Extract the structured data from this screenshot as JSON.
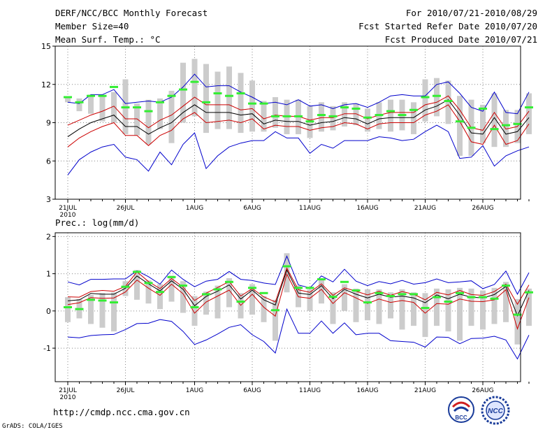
{
  "header": {
    "title": "DERF/NCC/BCC Monthly Forecast",
    "member_size": "Member Size=40",
    "variable_top": "Mean Surf. Temp.: °C",
    "forecast_period": "For 2010/07/21-2010/08/29",
    "fcst_started": "Fcst Started Refer Date 2010/07/20",
    "fcst_produced": "Fcst Produced Date 2010/07/21"
  },
  "footer": {
    "url": "http://cmdp.ncc.cma.gov.cn",
    "grads": "GrADS: COLA/IGES",
    "logo_bcc": "BCC",
    "logo_ncc": "NCC"
  },
  "colors": {
    "max_min": "#0000cc",
    "spread": "#cc0000",
    "mean": "#000000",
    "observed_marker": "#33ee33",
    "box": "#cccccc",
    "grid": "#888888"
  },
  "chart_data": [
    {
      "type": "line",
      "title": "Mean Surf. Temp.: °C",
      "xlabel": "",
      "ylabel": "°C",
      "ylim": [
        3,
        15
      ],
      "yticks": [
        3,
        6,
        9,
        12,
        15
      ],
      "x_tick_labels": [
        "21JUL",
        "26JUL",
        "1AUG",
        "6AUG",
        "11AUG",
        "16AUG",
        "21AUG",
        "26AUG"
      ],
      "x_tick_index": [
        0,
        5,
        11,
        16,
        21,
        26,
        31,
        36
      ],
      "year_label": "2010",
      "series": [
        {
          "name": "max",
          "color": "#0000cc",
          "values": [
            10.6,
            10.5,
            11.2,
            11.2,
            11.6,
            10.5,
            10.6,
            10.7,
            10.6,
            11.0,
            11.8,
            12.8,
            11.8,
            11.9,
            11.9,
            11.4,
            11.0,
            10.5,
            10.6,
            10.4,
            10.8,
            10.3,
            10.4,
            10.1,
            10.4,
            10.5,
            10.2,
            10.6,
            11.1,
            11.2,
            11.1,
            11.1,
            12.0,
            12.2,
            11.3,
            10.2,
            9.9,
            11.4,
            9.8,
            9.7,
            11.4
          ]
        },
        {
          "name": "spread_high",
          "color": "#cc0000",
          "values": [
            8.8,
            9.2,
            9.6,
            9.9,
            10.3,
            9.3,
            9.3,
            8.6,
            9.2,
            9.6,
            10.3,
            11.0,
            10.4,
            10.4,
            10.4,
            10.0,
            10.1,
            9.3,
            9.6,
            9.5,
            9.5,
            9.2,
            9.4,
            9.4,
            9.7,
            9.7,
            9.3,
            9.6,
            9.8,
            9.8,
            9.8,
            10.4,
            10.6,
            11.1,
            10.0,
            8.6,
            8.4,
            9.8,
            8.5,
            8.7,
            9.9
          ]
        },
        {
          "name": "mean",
          "color": "#000000",
          "values": [
            7.9,
            8.5,
            9.0,
            9.3,
            9.6,
            8.7,
            8.7,
            8.1,
            8.6,
            9.0,
            9.8,
            10.4,
            9.8,
            9.8,
            9.8,
            9.6,
            9.7,
            8.9,
            9.2,
            9.1,
            9.1,
            8.8,
            9.0,
            9.1,
            9.4,
            9.3,
            8.9,
            9.3,
            9.4,
            9.4,
            9.4,
            10.0,
            10.3,
            10.8,
            9.6,
            8.2,
            8.1,
            9.4,
            8.1,
            8.3,
            9.4
          ]
        },
        {
          "name": "spread_low",
          "color": "#cc0000",
          "values": [
            7.1,
            7.8,
            8.3,
            8.7,
            9.0,
            8.0,
            8.0,
            7.2,
            8.0,
            8.4,
            9.3,
            9.8,
            9.0,
            9.1,
            9.2,
            9.0,
            9.3,
            8.5,
            8.8,
            8.7,
            8.7,
            8.4,
            8.6,
            8.7,
            9.0,
            8.9,
            8.5,
            8.9,
            9.0,
            9.0,
            9.0,
            9.6,
            9.9,
            10.4,
            9.1,
            7.5,
            7.3,
            8.8,
            7.3,
            7.6,
            8.9
          ]
        },
        {
          "name": "min",
          "color": "#0000cc",
          "values": [
            4.9,
            6.1,
            6.7,
            7.1,
            7.3,
            6.3,
            6.1,
            5.2,
            6.7,
            5.7,
            7.3,
            8.2,
            5.4,
            6.4,
            7.1,
            7.4,
            7.6,
            7.6,
            8.3,
            7.8,
            7.8,
            6.6,
            7.3,
            7.0,
            7.6,
            7.6,
            7.6,
            7.9,
            7.8,
            7.6,
            7.7,
            8.3,
            8.8,
            8.3,
            6.2,
            6.3,
            7.2,
            5.6,
            6.4,
            6.8,
            7.1
          ]
        }
      ],
      "box_high": [
        11.0,
        10.9,
        11.2,
        11.2,
        11.4,
        12.4,
        10.5,
        10.8,
        10.9,
        11.5,
        13.7,
        14.0,
        13.6,
        13.0,
        13.4,
        12.9,
        12.3,
        10.7,
        11.0,
        10.8,
        10.8,
        10.3,
        10.6,
        10.3,
        10.6,
        10.5,
        10.1,
        10.6,
        10.8,
        10.8,
        10.6,
        12.4,
        12.5,
        12.3,
        11.1,
        10.8,
        10.4,
        11.3,
        10.0,
        10.0,
        11.3
      ],
      "box_low": [
        10.6,
        9.9,
        9.7,
        9.1,
        9.0,
        8.1,
        8.0,
        7.3,
        8.5,
        7.4,
        9.0,
        9.5,
        8.2,
        8.5,
        8.5,
        8.2,
        8.3,
        8.3,
        8.6,
        8.1,
        8.1,
        7.8,
        8.3,
        8.4,
        8.7,
        8.8,
        8.3,
        8.5,
        8.3,
        8.4,
        8.1,
        9.1,
        9.5,
        8.9,
        6.4,
        6.4,
        7.4,
        7.1,
        7.1,
        7.4,
        8.1
      ],
      "observed": [
        11.0,
        10.6,
        11.1,
        11.1,
        11.8,
        10.2,
        10.2,
        9.9,
        10.6,
        11.1,
        11.6,
        12.2,
        10.6,
        11.3,
        11.1,
        11.3,
        10.5,
        10.5,
        9.5,
        9.5,
        9.5,
        9.1,
        9.6,
        9.5,
        10.2,
        10.1,
        9.4,
        9.6,
        9.9,
        9.6,
        10.0,
        11.0,
        11.1,
        10.7,
        9.1,
        8.6,
        10.1,
        8.5,
        8.8,
        8.9,
        10.2
      ]
    },
    {
      "type": "line",
      "title": "Prec.: log(mm/d)",
      "xlabel": "",
      "ylabel": "log(mm/d)",
      "ylim": [
        -1.9,
        2.1
      ],
      "yticks": [
        -1,
        0,
        1,
        2
      ],
      "x_tick_labels": [
        "21JUL",
        "26JUL",
        "1AUG",
        "6AUG",
        "11AUG",
        "16AUG",
        "21AUG",
        "26AUG"
      ],
      "x_tick_index": [
        0,
        5,
        11,
        16,
        21,
        26,
        31,
        36
      ],
      "year_label": "2010",
      "series": [
        {
          "name": "max",
          "color": "#0000cc",
          "values": [
            0.78,
            0.7,
            0.85,
            0.85,
            0.86,
            0.86,
            1.08,
            0.92,
            0.72,
            1.1,
            0.85,
            0.65,
            0.8,
            0.85,
            1.06,
            0.85,
            0.82,
            0.75,
            0.71,
            1.47,
            0.7,
            0.62,
            0.94,
            0.78,
            1.12,
            0.8,
            0.68,
            0.79,
            0.73,
            0.82,
            0.72,
            0.76,
            0.86,
            0.76,
            0.78,
            0.81,
            0.6,
            0.71,
            1.07,
            0.45,
            1.03
          ]
        },
        {
          "name": "spread_high",
          "color": "#cc0000",
          "values": [
            0.38,
            0.37,
            0.52,
            0.55,
            0.53,
            0.66,
            1.05,
            0.79,
            0.6,
            0.87,
            0.64,
            0.28,
            0.48,
            0.63,
            0.79,
            0.4,
            0.6,
            0.38,
            0.24,
            1.15,
            0.57,
            0.5,
            0.73,
            0.42,
            0.62,
            0.53,
            0.43,
            0.53,
            0.42,
            0.52,
            0.45,
            0.3,
            0.5,
            0.43,
            0.55,
            0.44,
            0.42,
            0.52,
            0.72,
            0.18,
            0.7
          ]
        },
        {
          "name": "mean",
          "color": "#000000",
          "values": [
            0.27,
            0.3,
            0.47,
            0.45,
            0.45,
            0.61,
            0.94,
            0.73,
            0.54,
            0.81,
            0.58,
            0.14,
            0.39,
            0.53,
            0.7,
            0.32,
            0.56,
            0.3,
            0.16,
            1.1,
            0.48,
            0.44,
            0.68,
            0.33,
            0.58,
            0.45,
            0.35,
            0.45,
            0.37,
            0.4,
            0.35,
            0.22,
            0.43,
            0.33,
            0.45,
            0.37,
            0.35,
            0.44,
            0.66,
            -0.13,
            0.55
          ]
        },
        {
          "name": "spread_low",
          "color": "#cc0000",
          "values": [
            0.17,
            0.22,
            0.36,
            0.34,
            0.35,
            0.51,
            0.83,
            0.61,
            0.42,
            0.72,
            0.46,
            -0.06,
            0.24,
            0.4,
            0.56,
            0.15,
            0.45,
            0.1,
            -0.14,
            0.99,
            0.38,
            0.34,
            0.58,
            0.2,
            0.49,
            0.35,
            0.2,
            0.32,
            0.23,
            0.28,
            0.23,
            -0.06,
            0.2,
            0.18,
            0.32,
            0.26,
            0.25,
            0.3,
            0.57,
            -0.48,
            0.36
          ]
        },
        {
          "name": "min",
          "color": "#0000cc",
          "values": [
            -0.7,
            -0.72,
            -0.66,
            -0.64,
            -0.63,
            -0.5,
            -0.34,
            -0.33,
            -0.23,
            -0.28,
            -0.55,
            -0.9,
            -0.78,
            -0.62,
            -0.44,
            -0.37,
            -0.64,
            -0.82,
            -1.13,
            0.05,
            -0.6,
            -0.6,
            -0.27,
            -0.6,
            -0.32,
            -0.64,
            -0.6,
            -0.6,
            -0.8,
            -0.82,
            -0.84,
            -0.97,
            -0.7,
            -0.71,
            -0.88,
            -0.74,
            -0.73,
            -0.68,
            -0.78,
            -1.29,
            -0.65
          ]
        }
      ],
      "box_high": [
        0.37,
        0.32,
        0.43,
        0.48,
        0.5,
        0.8,
        1.1,
        0.82,
        0.72,
        0.95,
        0.8,
        0.4,
        0.52,
        0.68,
        0.88,
        0.48,
        0.72,
        0.4,
        0.3,
        1.55,
        0.68,
        0.58,
        0.84,
        0.5,
        0.72,
        0.6,
        0.58,
        0.58,
        0.5,
        0.58,
        0.5,
        0.48,
        0.6,
        0.58,
        0.62,
        0.6,
        0.55,
        0.62,
        0.78,
        0.32,
        0.6
      ],
      "box_low": [
        -0.3,
        -0.2,
        -0.35,
        -0.45,
        -0.55,
        0.4,
        0.3,
        0.2,
        0.05,
        0.25,
        -0.05,
        -0.4,
        -0.1,
        -0.2,
        0.1,
        -0.2,
        -0.1,
        -0.3,
        -0.8,
        0.5,
        0.1,
        0.0,
        0.2,
        -0.35,
        0.0,
        -0.3,
        -0.25,
        -0.35,
        -0.2,
        -0.5,
        -0.4,
        -0.7,
        -0.4,
        -0.55,
        -0.8,
        -0.4,
        -0.5,
        -0.35,
        -0.3,
        -0.9,
        -0.4
      ],
      "observed": [
        0.1,
        0.05,
        0.3,
        0.28,
        0.23,
        0.65,
        1.05,
        0.75,
        0.51,
        0.91,
        0.68,
        0.1,
        0.45,
        0.58,
        0.78,
        0.25,
        0.62,
        0.48,
        0.02,
        1.2,
        0.62,
        0.62,
        0.85,
        0.38,
        0.78,
        0.55,
        0.23,
        0.48,
        0.4,
        0.45,
        0.45,
        0.08,
        0.37,
        0.25,
        0.48,
        0.37,
        0.37,
        0.33,
        0.68,
        -0.1,
        0.5
      ]
    }
  ]
}
